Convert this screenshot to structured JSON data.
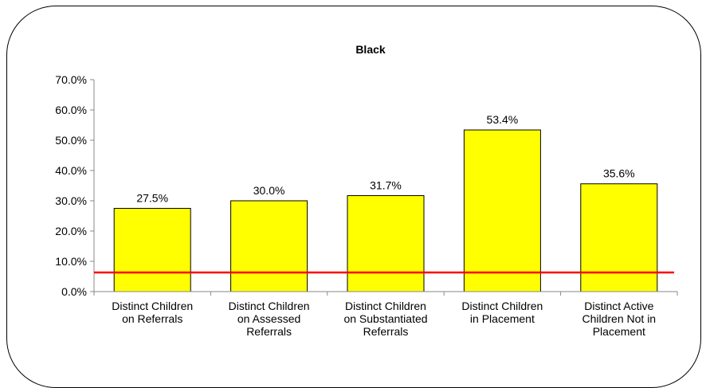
{
  "chart_data": {
    "type": "bar",
    "title": "Black",
    "categories": [
      [
        "Distinct Children",
        "on Referrals"
      ],
      [
        "Distinct Children",
        "on Assessed",
        "Referrals"
      ],
      [
        "Distinct Children",
        "on Substantiated",
        "Referrals"
      ],
      [
        "Distinct Children",
        "in Placement"
      ],
      [
        "Distinct Active",
        "Children Not in",
        "Placement"
      ]
    ],
    "values": [
      27.5,
      30.0,
      31.7,
      53.4,
      35.6
    ],
    "data_labels": [
      "27.5%",
      "30.0%",
      "31.7%",
      "53.4%",
      "35.6%"
    ],
    "y_ticks": [
      "0.0%",
      "10.0%",
      "20.0%",
      "30.0%",
      "40.0%",
      "50.0%",
      "60.0%",
      "70.0%"
    ],
    "ylim": [
      0,
      70
    ],
    "xlabel": "",
    "ylabel": "",
    "grid": false,
    "reference_line": {
      "value": 6.3,
      "color": "#ff0000"
    },
    "bar_color": "#ffff00",
    "bar_edge_color": "#000000",
    "legend": "none"
  }
}
